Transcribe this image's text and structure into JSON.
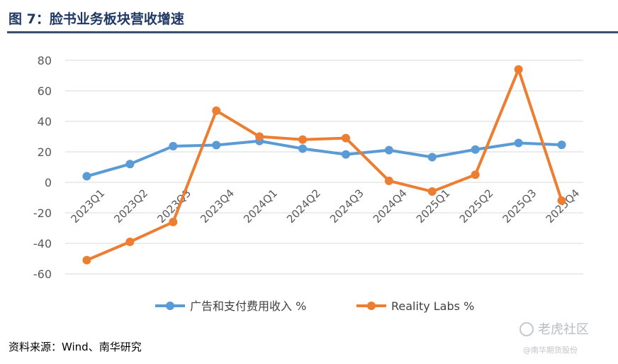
{
  "header": {
    "title": "图 7：脸书业务板块营收增速"
  },
  "chart_data": {
    "type": "line",
    "title": "图 7：脸书业务板块营收增速",
    "xlabel": "",
    "ylabel": "",
    "categories": [
      "2023Q1",
      "2023Q2",
      "2023Q3",
      "2023Q4",
      "2024Q1",
      "2024Q2",
      "2024Q3",
      "2024Q4",
      "2025Q1",
      "2025Q2",
      "2025Q3",
      "2025Q4"
    ],
    "yticks": [
      "80",
      "60",
      "40",
      "20",
      "0",
      "-20",
      "-40",
      "-60"
    ],
    "ytick_values": [
      80,
      60,
      40,
      20,
      0,
      -20,
      -40,
      -60
    ],
    "ylim": [
      -60,
      80
    ],
    "series": [
      {
        "name": "广告和支付费用收入 %",
        "color": "#5b9bd5",
        "values": [
          4,
          12,
          23.7,
          24.4,
          27.1,
          22.1,
          18.3,
          21.1,
          16.5,
          21.5,
          25.8,
          24.6
        ]
      },
      {
        "name": "Reality Labs %",
        "color": "#ed7d31",
        "values": [
          -51,
          -39,
          -26,
          47,
          30,
          28,
          29,
          1,
          -6,
          5,
          74,
          -12
        ]
      }
    ],
    "legend_position": "bottom"
  },
  "footer": {
    "source": "资料来源：Wind、南华研究",
    "watermark_main": "老虎社区",
    "watermark_sub": "@南华期货股份"
  }
}
